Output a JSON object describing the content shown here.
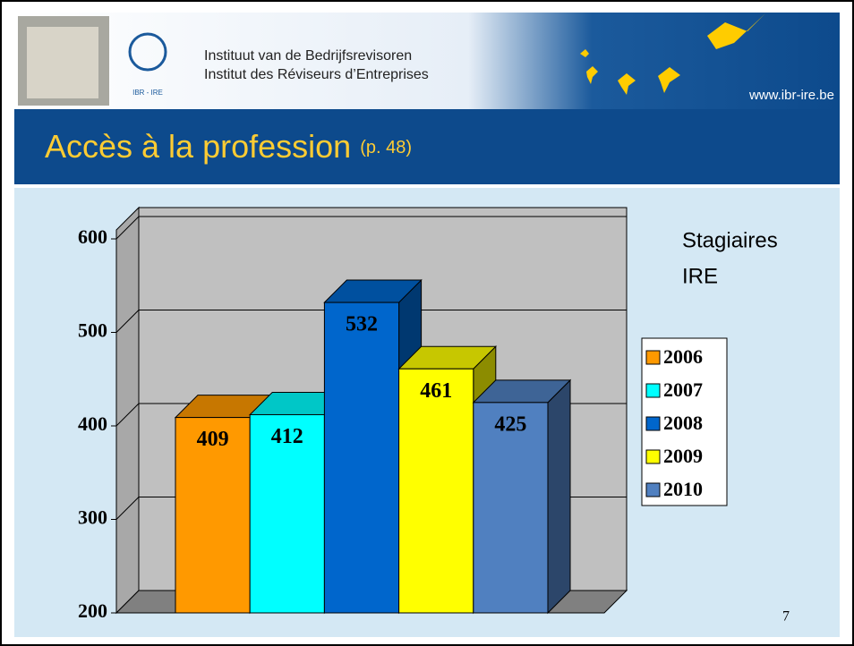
{
  "header": {
    "nl_name": "Instituut van de Bedrijfsrevisoren",
    "fr_name": "Institut des Réviseurs d’Entreprises",
    "logo_text": "IBR - IRE",
    "website": "www.ibr-ire.be"
  },
  "title": {
    "main": "Accès à la profession",
    "ref": "(p. 48)"
  },
  "page_number": "7",
  "chart_data": {
    "type": "bar",
    "annotation": [
      "Stagiaires",
      "IRE"
    ],
    "series": [
      {
        "name": "2006",
        "color": "#ff9900",
        "values": [
          409
        ]
      },
      {
        "name": "2007",
        "color": "#00ffff",
        "values": [
          412
        ]
      },
      {
        "name": "2008",
        "color": "#0066cc",
        "values": [
          532
        ]
      },
      {
        "name": "2009",
        "color": "#ffff00",
        "values": [
          461
        ]
      },
      {
        "name": "2010",
        "color": "#5080c0",
        "values": [
          425
        ]
      }
    ],
    "ylim": [
      200,
      600
    ],
    "yticks": [
      200,
      300,
      400,
      500,
      600
    ],
    "grid": true,
    "legend": "right"
  }
}
